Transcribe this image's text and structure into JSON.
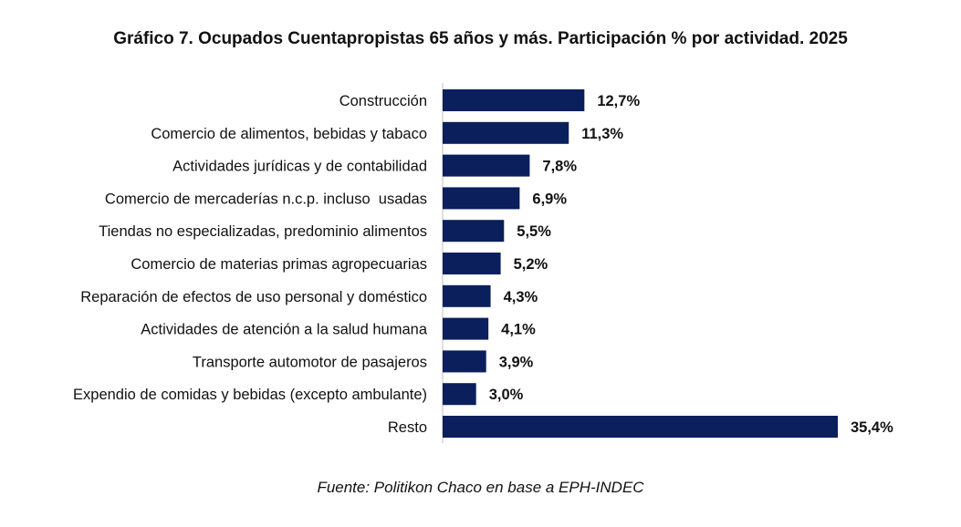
{
  "title": "Gráfico 7. Ocupados Cuentapropistas 65 años y más. Participación % por actividad. 2025",
  "source": "Fuente: Politikon Chaco en base a EPH-INDEC",
  "colors": {
    "bar": "#0b1f5c",
    "axis": "#bfbfbf"
  },
  "chart_data": {
    "type": "bar",
    "orientation": "horizontal",
    "title": "Gráfico 7. Ocupados Cuentapropistas 65 años y más. Participación % por actividad. 2025",
    "xlabel": "",
    "ylabel": "",
    "xlim": [
      0,
      35.4
    ],
    "grid": false,
    "legend": "none",
    "categories": [
      "Construcción",
      "Comercio de alimentos, bebidas y tabaco",
      "Actividades jurídicas y de contabilidad",
      "Comercio de mercaderías n.c.p. incluso  usadas",
      "Tiendas no especializadas, predominio alimentos",
      "Comercio de materias primas agropecuarias",
      "Reparación de efectos de uso personal y doméstico",
      "Actividades de atención a la salud humana",
      "Transporte automotor de pasajeros",
      "Expendio de comidas y bebidas (excepto ambulante)",
      "Resto"
    ],
    "values": [
      12.7,
      11.3,
      7.8,
      6.9,
      5.5,
      5.2,
      4.3,
      4.1,
      3.9,
      3.0,
      35.4
    ],
    "value_labels": [
      "12,7%",
      "11,3%",
      "7,8%",
      "6,9%",
      "5,5%",
      "5,2%",
      "4,3%",
      "4,1%",
      "3,9%",
      "3,0%",
      "35,4%"
    ]
  }
}
